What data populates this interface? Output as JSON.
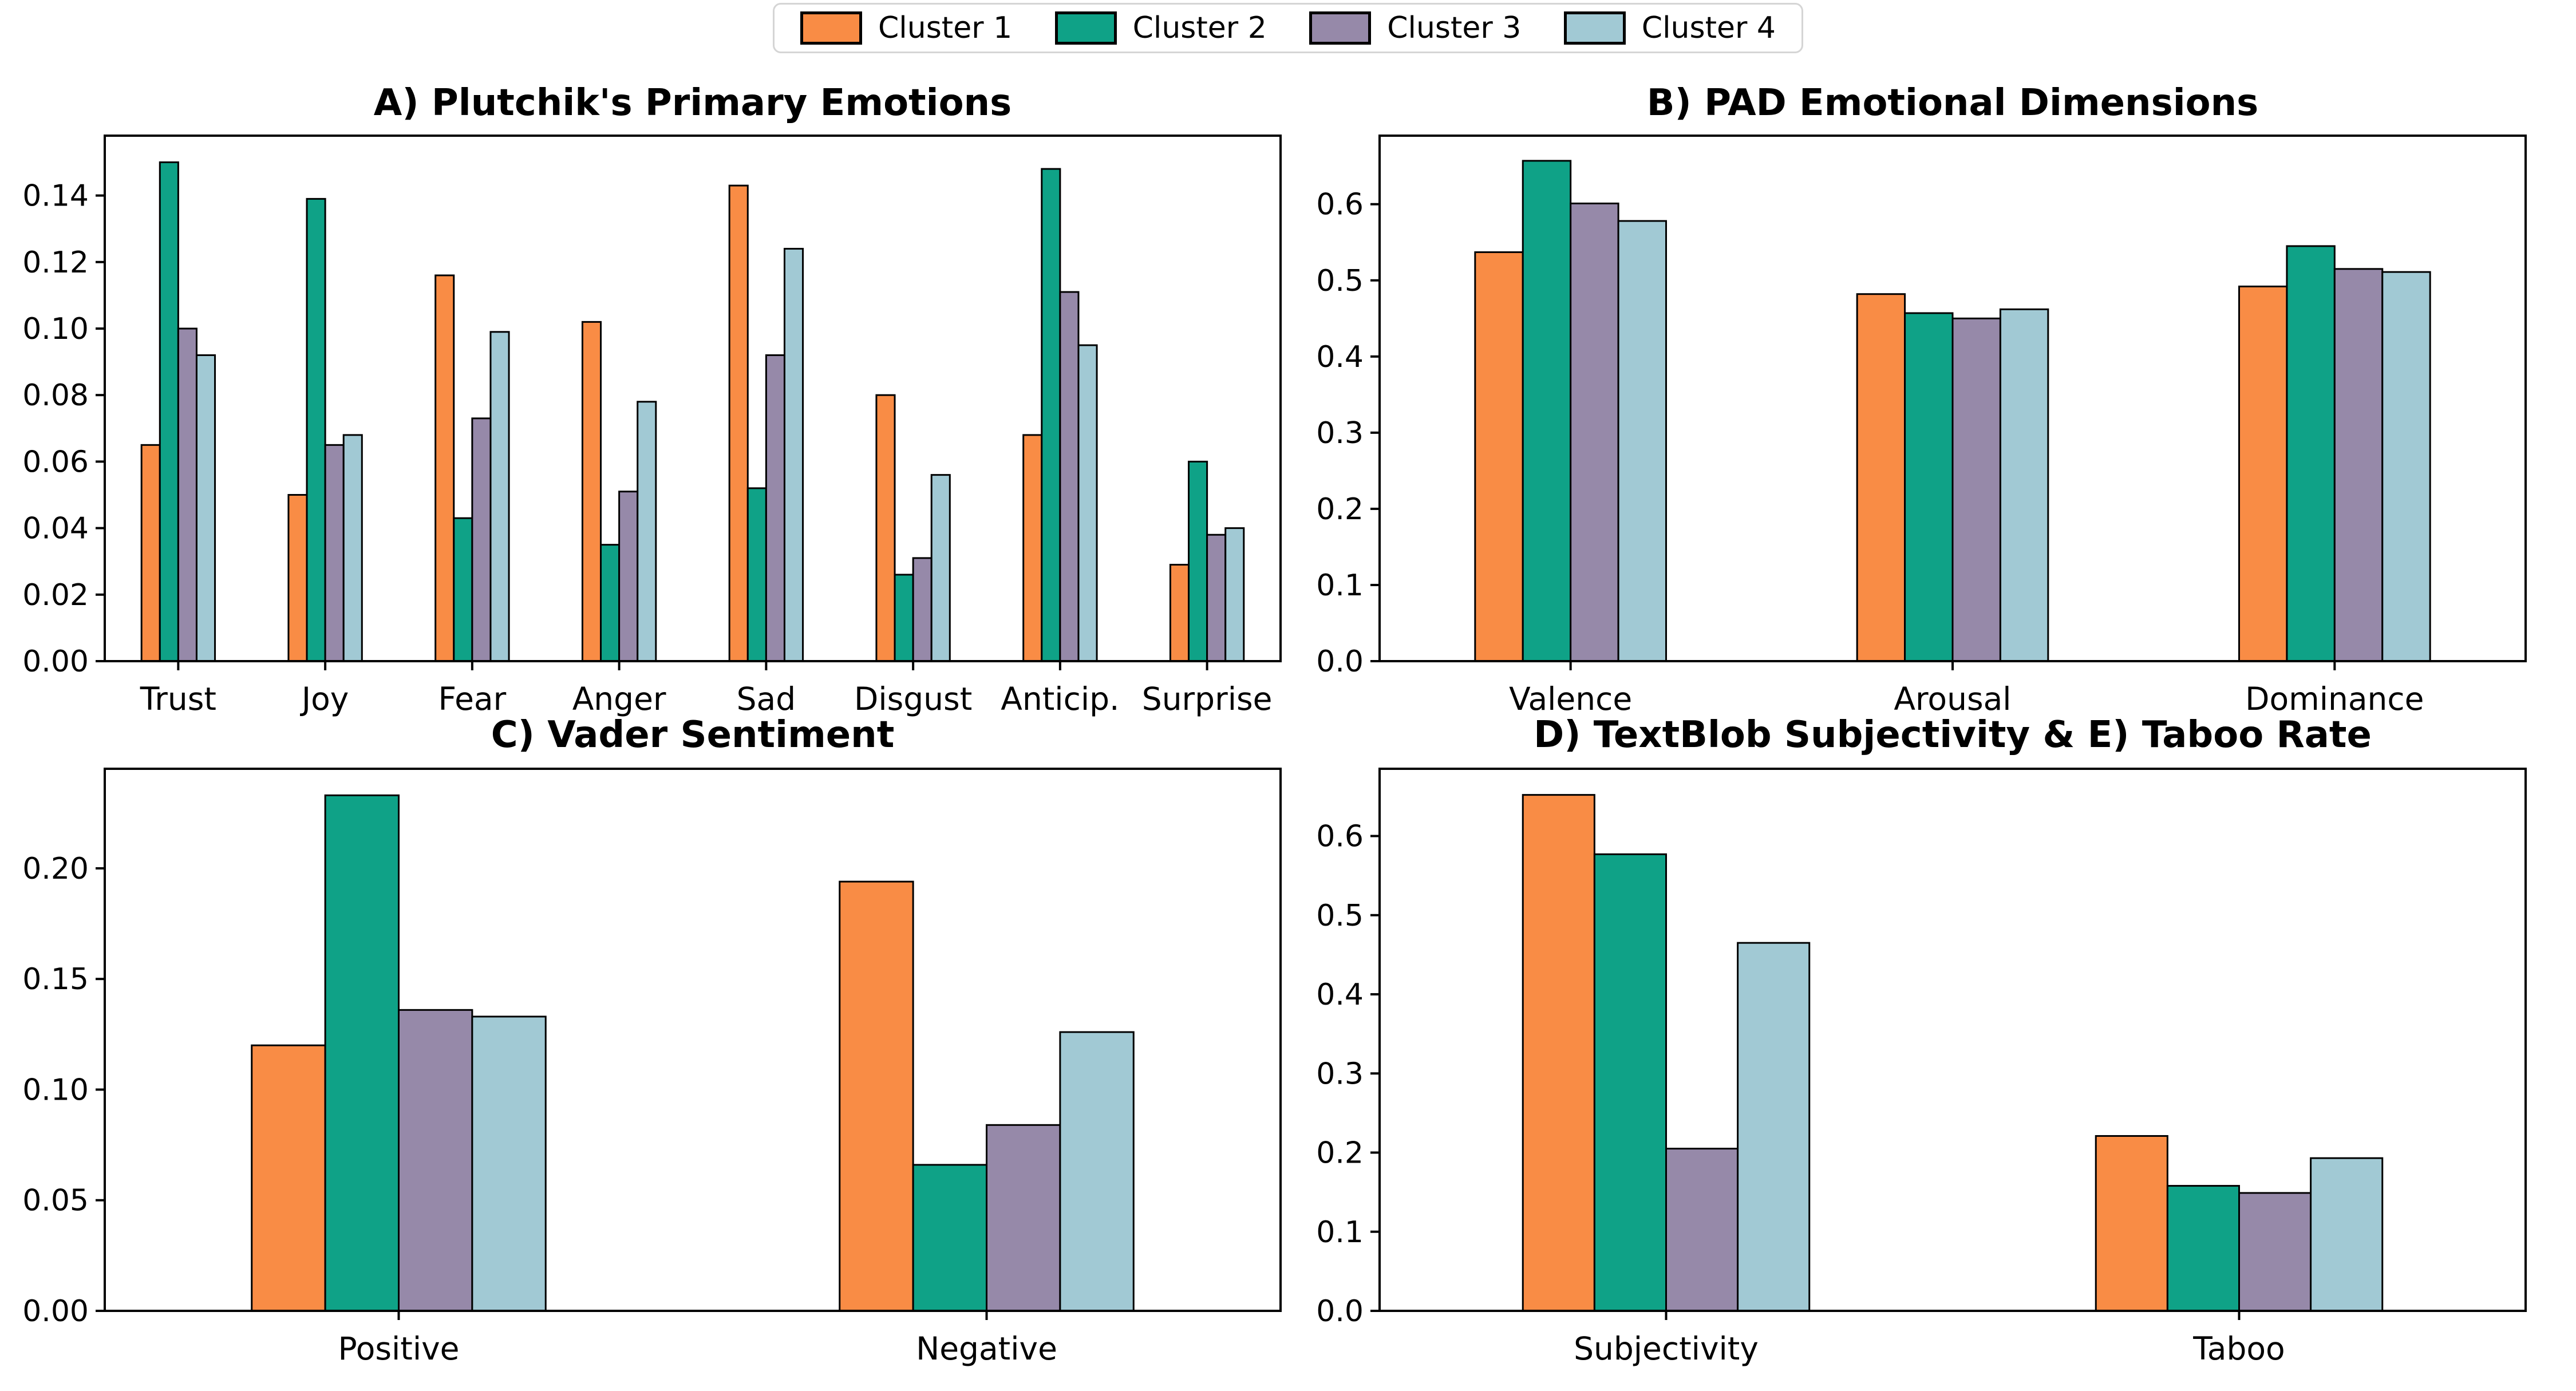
{
  "figure": {
    "background": "#ffffff"
  },
  "legend": {
    "items": [
      {
        "label": "Cluster 1",
        "color": "#F98C45"
      },
      {
        "label": "Cluster 2",
        "color": "#0FA287"
      },
      {
        "label": "Cluster 3",
        "color": "#9689A9"
      },
      {
        "label": "Cluster 4",
        "color": "#A1C9D4"
      }
    ],
    "border_color": "#d5d5d5",
    "swatch_edge_color": "#000000"
  },
  "chart_data": [
    {
      "type": "bar",
      "title": "A) Plutchik's Primary Emotions",
      "categories": [
        "Trust",
        "Joy",
        "Fear",
        "Anger",
        "Sad",
        "Disgust",
        "Anticip.",
        "Surprise"
      ],
      "series": [
        {
          "name": "Cluster 1",
          "color": "#F98C45",
          "values": [
            0.065,
            0.05,
            0.116,
            0.102,
            0.143,
            0.08,
            0.068,
            0.029
          ]
        },
        {
          "name": "Cluster 2",
          "color": "#0FA287",
          "values": [
            0.15,
            0.139,
            0.043,
            0.035,
            0.052,
            0.026,
            0.148,
            0.06
          ]
        },
        {
          "name": "Cluster 3",
          "color": "#9689A9",
          "values": [
            0.1,
            0.065,
            0.073,
            0.051,
            0.092,
            0.031,
            0.111,
            0.038
          ]
        },
        {
          "name": "Cluster 4",
          "color": "#A1C9D4",
          "values": [
            0.092,
            0.068,
            0.099,
            0.078,
            0.124,
            0.056,
            0.095,
            0.04
          ]
        }
      ],
      "ylim": [
        0,
        0.158
      ],
      "yticks": [
        "0.00",
        "0.02",
        "0.04",
        "0.06",
        "0.08",
        "0.10",
        "0.12",
        "0.14"
      ],
      "xlabel": "",
      "ylabel": "",
      "grid": false,
      "bar_edge_color": "#000000"
    },
    {
      "type": "bar",
      "title": "B) PAD Emotional Dimensions",
      "categories": [
        "Valence",
        "Arousal",
        "Dominance"
      ],
      "series": [
        {
          "name": "Cluster 1",
          "color": "#F98C45",
          "values": [
            0.537,
            0.482,
            0.492
          ]
        },
        {
          "name": "Cluster 2",
          "color": "#0FA287",
          "values": [
            0.657,
            0.457,
            0.545
          ]
        },
        {
          "name": "Cluster 3",
          "color": "#9689A9",
          "values": [
            0.601,
            0.45,
            0.515
          ]
        },
        {
          "name": "Cluster 4",
          "color": "#A1C9D4",
          "values": [
            0.578,
            0.462,
            0.511
          ]
        }
      ],
      "ylim": [
        0,
        0.69
      ],
      "yticks": [
        "0.0",
        "0.1",
        "0.2",
        "0.3",
        "0.4",
        "0.5",
        "0.6"
      ],
      "xlabel": "",
      "ylabel": "",
      "grid": false,
      "bar_edge_color": "#000000"
    },
    {
      "type": "bar",
      "title": "C) Vader Sentiment",
      "categories": [
        "Positive",
        "Negative"
      ],
      "series": [
        {
          "name": "Cluster 1",
          "color": "#F98C45",
          "values": [
            0.12,
            0.194
          ]
        },
        {
          "name": "Cluster 2",
          "color": "#0FA287",
          "values": [
            0.233,
            0.066
          ]
        },
        {
          "name": "Cluster 3",
          "color": "#9689A9",
          "values": [
            0.136,
            0.084
          ]
        },
        {
          "name": "Cluster 4",
          "color": "#A1C9D4",
          "values": [
            0.133,
            0.126
          ]
        }
      ],
      "ylim": [
        0,
        0.245
      ],
      "yticks": [
        "0.00",
        "0.05",
        "0.10",
        "0.15",
        "0.20"
      ],
      "xlabel": "",
      "ylabel": "",
      "grid": false,
      "bar_edge_color": "#000000"
    },
    {
      "type": "bar",
      "title": "D) TextBlob Subjectivity & E) Taboo Rate",
      "categories": [
        "Subjectivity",
        "Taboo"
      ],
      "series": [
        {
          "name": "Cluster 1",
          "color": "#F98C45",
          "values": [
            0.652,
            0.221
          ]
        },
        {
          "name": "Cluster 2",
          "color": "#0FA287",
          "values": [
            0.577,
            0.158
          ]
        },
        {
          "name": "Cluster 3",
          "color": "#9689A9",
          "values": [
            0.205,
            0.149
          ]
        },
        {
          "name": "Cluster 4",
          "color": "#A1C9D4",
          "values": [
            0.465,
            0.193
          ]
        }
      ],
      "ylim": [
        0,
        0.685
      ],
      "yticks": [
        "0.0",
        "0.1",
        "0.2",
        "0.3",
        "0.4",
        "0.5",
        "0.6"
      ],
      "xlabel": "",
      "ylabel": "",
      "grid": false,
      "bar_edge_color": "#000000"
    }
  ]
}
